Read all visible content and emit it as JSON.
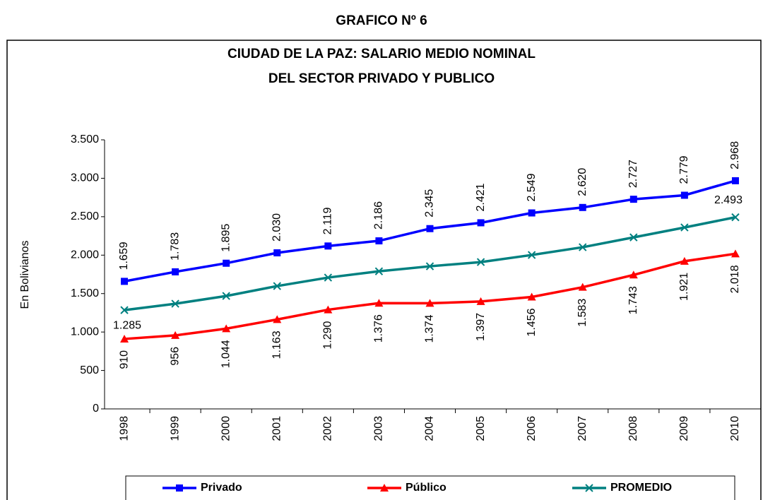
{
  "chart_data": {
    "type": "line",
    "header": "GRAFICO Nº 6",
    "title": [
      "CIUDAD DE LA PAZ: SALARIO MEDIO NOMINAL",
      "DEL SECTOR PRIVADO Y PUBLICO"
    ],
    "y_label": "En Bolivianos",
    "categories": [
      "1998",
      "1999",
      "2000",
      "2001",
      "2002",
      "2003",
      "2004",
      "2005",
      "2006",
      "2007",
      "2008",
      "2009",
      "2010"
    ],
    "series": [
      {
        "name": "Privado",
        "color": "#0000ff",
        "marker": "square",
        "values": [
          1659,
          1783,
          1895,
          2030,
          2119,
          2186,
          2345,
          2421,
          2549,
          2620,
          2727,
          2779,
          2968
        ],
        "value_labels": [
          "1.659",
          "1.783",
          "1.895",
          "2.030",
          "2.119",
          "2.186",
          "2.345",
          "2.421",
          "2.549",
          "2.620",
          "2.727",
          "2.779",
          "2.968"
        ]
      },
      {
        "name": "Público",
        "color": "#ff0000",
        "marker": "triangle",
        "values": [
          910,
          956,
          1044,
          1163,
          1290,
          1376,
          1374,
          1397,
          1456,
          1583,
          1743,
          1921,
          2018
        ],
        "value_labels": [
          "910",
          "956",
          "1.044",
          "1.163",
          "1.290",
          "1.376",
          "1.374",
          "1.397",
          "1.456",
          "1.583",
          "1.743",
          "1.921",
          "2.018"
        ]
      },
      {
        "name": "PROMEDIO",
        "color": "#008080",
        "marker": "x",
        "values": [
          1285,
          1368,
          1469,
          1598,
          1708,
          1790,
          1855,
          1910,
          2002,
          2103,
          2231,
          2360,
          2493
        ],
        "value_labels": [
          "1.285",
          null,
          null,
          null,
          null,
          null,
          null,
          null,
          null,
          null,
          null,
          null,
          "2.493"
        ]
      }
    ],
    "ylim": [
      0,
      3500
    ],
    "yticks": [
      0,
      500,
      {
        "value": 1000,
        "label": "1.000"
      },
      {
        "value": 1500,
        "label": "1.500"
      },
      {
        "value": 2000,
        "label": "2.000"
      },
      {
        "value": 2500,
        "label": "2.500"
      },
      {
        "value": 3000,
        "label": "3.000"
      },
      {
        "value": 3500,
        "label": "3.500"
      }
    ],
    "legend": "bottom",
    "grid": false
  }
}
